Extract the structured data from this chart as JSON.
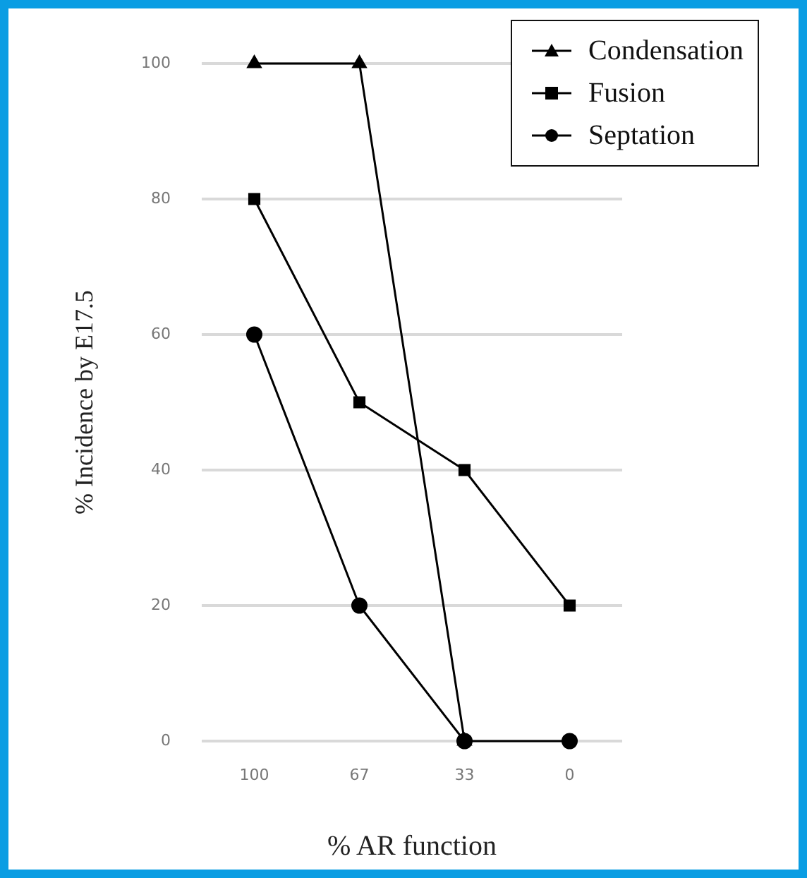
{
  "chart_data": {
    "type": "line",
    "xlabel": "% AR function",
    "ylabel": "% Incidence by E17.5",
    "categories": [
      "100",
      "67",
      "33",
      "0"
    ],
    "series": [
      {
        "name": "Condensation",
        "color": "#000000",
        "marker": "triangle",
        "values": [
          100,
          100,
          0,
          null
        ]
      },
      {
        "name": "Fusion",
        "color": "#000000",
        "marker": "square",
        "values": [
          80,
          50,
          40,
          20
        ]
      },
      {
        "name": "Septation",
        "color": "#000000",
        "marker": "circle",
        "values": [
          60,
          20,
          0,
          0
        ]
      }
    ],
    "ylim": [
      0,
      100
    ],
    "yticks": [
      0,
      20,
      40,
      60,
      80,
      100
    ],
    "grid": "y",
    "legend": "top right"
  }
}
